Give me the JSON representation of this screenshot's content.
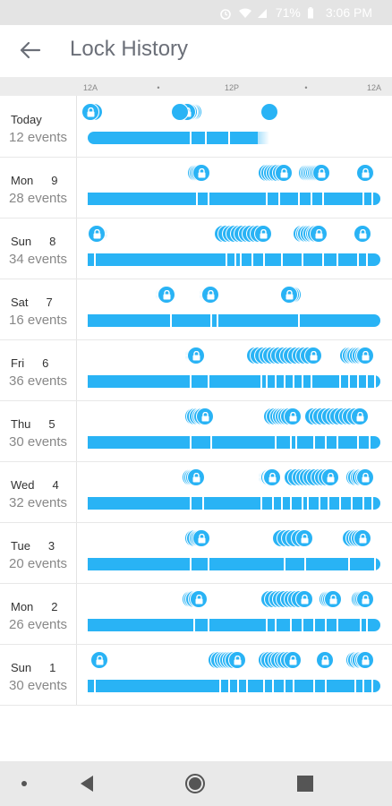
{
  "status": {
    "battery": "71%",
    "time": "3:06 PM",
    "icons": [
      "alarm-icon",
      "wifi-icon",
      "signal-icon",
      "battery-icon"
    ]
  },
  "header": {
    "title": "Lock History",
    "back_icon": "arrow-left-icon"
  },
  "axis": {
    "labels": [
      "12A",
      "•",
      "12P",
      "•",
      "12A"
    ]
  },
  "colors": {
    "accent": "#29b3f5"
  },
  "days": [
    {
      "day": "Today",
      "date": "",
      "count": "12 events",
      "clusters": [
        [
          0.33,
          0.37,
          5
        ],
        [
          0.43,
          0.01,
          0
        ],
        [
          0.48,
          0.02,
          0
        ],
        [
          0.59,
          0.04,
          3
        ]
      ],
      "bar": [
        0.0,
        0.58
      ],
      "tail": [
        0.52,
        0.62
      ],
      "seps": [
        0.35,
        0.4,
        0.48
      ]
    },
    {
      "day": "Mon",
      "date": "9",
      "count": "28 events",
      "clusters": [
        [
          0.34,
          0.42,
          4
        ],
        [
          0.58,
          0.7,
          7
        ],
        [
          0.72,
          0.83,
          9
        ],
        [
          0.92,
          0.98,
          4
        ]
      ],
      "bar": [
        0.0,
        1.0
      ],
      "tail": null,
      "seps": [
        0.37,
        0.41,
        0.61,
        0.65,
        0.72,
        0.76,
        0.8,
        0.94,
        0.97
      ]
    },
    {
      "day": "Sun",
      "date": "8",
      "count": "34 events",
      "clusters": [
        [
          0.01,
          0.06,
          4
        ],
        [
          0.43,
          0.63,
          11
        ],
        [
          0.7,
          0.82,
          8
        ],
        [
          0.91,
          0.97,
          4
        ]
      ],
      "bar": [
        0.0,
        1.0
      ],
      "tail": null,
      "seps": [
        0.02,
        0.47,
        0.5,
        0.52,
        0.56,
        0.6,
        0.66,
        0.73,
        0.8,
        0.85,
        0.92,
        0.95
      ]
    },
    {
      "day": "Sat",
      "date": "7",
      "count": "16 events",
      "clusters": [
        [
          0.23,
          0.3,
          5
        ],
        [
          0.38,
          0.45,
          5
        ],
        [
          0.67,
          0.72,
          3
        ]
      ],
      "bar": [
        0.0,
        1.0
      ],
      "tail": null,
      "seps": [
        0.28,
        0.42,
        0.44,
        0.72
      ]
    },
    {
      "day": "Fri",
      "date": "6",
      "count": "36 events",
      "clusters": [
        [
          0.33,
          0.4,
          4
        ],
        [
          0.54,
          0.8,
          15
        ],
        [
          0.86,
          0.98,
          8
        ]
      ],
      "bar": [
        0.0,
        1.0
      ],
      "tail": null,
      "seps": [
        0.35,
        0.41,
        0.59,
        0.61,
        0.64,
        0.67,
        0.7,
        0.73,
        0.76,
        0.86,
        0.89,
        0.92,
        0.95,
        0.98
      ]
    },
    {
      "day": "Thu",
      "date": "5",
      "count": "30 events",
      "clusters": [
        [
          0.33,
          0.43,
          6
        ],
        [
          0.6,
          0.73,
          8
        ],
        [
          0.74,
          0.96,
          12
        ]
      ],
      "bar": [
        0.0,
        1.0
      ],
      "tail": null,
      "seps": [
        0.35,
        0.42,
        0.64,
        0.69,
        0.71,
        0.77,
        0.81,
        0.85,
        0.92,
        0.96
      ]
    },
    {
      "day": "Wed",
      "date": "4",
      "count": "32 events",
      "clusters": [
        [
          0.32,
          0.4,
          4
        ],
        [
          0.58,
          0.66,
          6
        ],
        [
          0.67,
          0.86,
          11
        ],
        [
          0.88,
          0.98,
          6
        ]
      ],
      "bar": [
        0.0,
        1.0
      ],
      "tail": null,
      "seps": [
        0.35,
        0.39,
        0.59,
        0.63,
        0.66,
        0.69,
        0.73,
        0.75,
        0.79,
        0.82,
        0.86,
        0.9,
        0.94,
        0.97
      ]
    },
    {
      "day": "Tue",
      "date": "3",
      "count": "20 events",
      "clusters": [
        [
          0.33,
          0.42,
          5
        ],
        [
          0.63,
          0.77,
          6
        ],
        [
          0.87,
          0.97,
          5
        ]
      ],
      "bar": [
        0.0,
        1.0
      ],
      "tail": null,
      "seps": [
        0.35,
        0.41,
        0.67,
        0.74,
        0.89,
        0.98
      ]
    },
    {
      "day": "Mon",
      "date": "2",
      "count": "26 events",
      "clusters": [
        [
          0.32,
          0.41,
          5
        ],
        [
          0.59,
          0.77,
          10
        ],
        [
          0.79,
          0.87,
          4
        ],
        [
          0.9,
          0.98,
          4
        ]
      ],
      "bar": [
        0.0,
        1.0
      ],
      "tail": null,
      "seps": [
        0.36,
        0.41,
        0.61,
        0.64,
        0.69,
        0.73,
        0.77,
        0.81,
        0.85,
        0.93,
        0.95
      ]
    },
    {
      "day": "Sun",
      "date": "1",
      "count": "30 events",
      "clusters": [
        [
          0.01,
          0.07,
          4
        ],
        [
          0.41,
          0.54,
          8
        ],
        [
          0.58,
          0.73,
          9
        ],
        [
          0.78,
          0.84,
          3
        ],
        [
          0.88,
          0.98,
          6
        ]
      ],
      "bar": [
        0.0,
        1.0
      ],
      "tail": null,
      "seps": [
        0.02,
        0.45,
        0.48,
        0.51,
        0.54,
        0.6,
        0.63,
        0.67,
        0.7,
        0.77,
        0.81,
        0.91,
        0.94,
        0.97
      ]
    }
  ],
  "nav": {
    "buttons": [
      "dot-button",
      "back-button",
      "home-button",
      "recents-button"
    ]
  }
}
